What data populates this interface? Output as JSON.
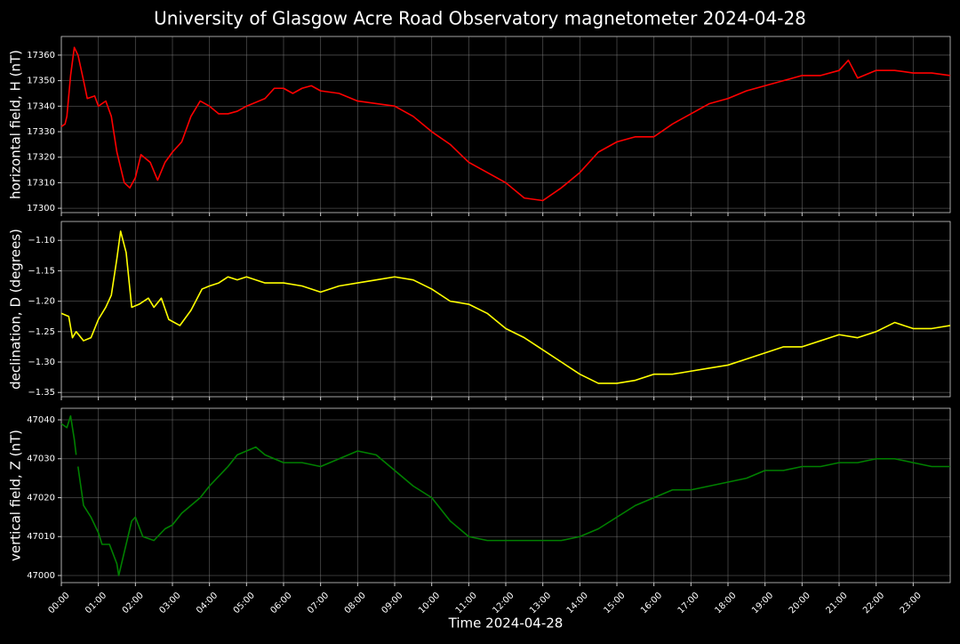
{
  "title": "University of Glasgow Acre Road Observatory magnetometer 2024-04-28",
  "chart_data": [
    {
      "type": "line",
      "ylabel": "horizontal field, H (nT)",
      "color": "#ff0000",
      "grid": true,
      "xlim": [
        0,
        24
      ],
      "ylim": [
        17298.3,
        17367.3
      ],
      "yticks": [
        17300,
        17310,
        17320,
        17330,
        17340,
        17350,
        17360
      ],
      "x": [
        0,
        0.1,
        0.15,
        0.25,
        0.35,
        0.45,
        0.6,
        0.7,
        0.9,
        1.0,
        1.2,
        1.35,
        1.5,
        1.7,
        1.85,
        2.0,
        2.15,
        2.4,
        2.6,
        2.8,
        3.0,
        3.25,
        3.5,
        3.75,
        4.0,
        4.25,
        4.5,
        4.75,
        5.0,
        5.5,
        5.75,
        6.0,
        6.25,
        6.5,
        6.75,
        7.0,
        7.5,
        8.0,
        8.5,
        9.0,
        9.5,
        10.0,
        10.5,
        11.0,
        11.5,
        12.0,
        12.5,
        13.0,
        13.5,
        14.0,
        14.5,
        15.0,
        15.5,
        16.0,
        16.5,
        17.0,
        17.5,
        18.0,
        18.5,
        19.0,
        19.5,
        20.0,
        20.5,
        21.0,
        21.25,
        21.5,
        22.0,
        22.5,
        23.0,
        23.5,
        24.0
      ],
      "values": [
        17332,
        17333,
        17336,
        17352,
        17363,
        17360,
        17350,
        17343,
        17344,
        17340,
        17342,
        17336,
        17322,
        17310,
        17308,
        17312,
        17321,
        17318,
        17311,
        17318,
        17322,
        17326,
        17336,
        17342,
        17340,
        17337,
        17337,
        17338,
        17340,
        17343,
        17347,
        17347,
        17345,
        17347,
        17348,
        17346,
        17345,
        17342,
        17341,
        17340,
        17336,
        17330,
        17325,
        17318,
        17314,
        17310,
        17304,
        17303,
        17308,
        17314,
        17322,
        17326,
        17328,
        17328,
        17333,
        17337,
        17341,
        17343,
        17346,
        17348,
        17350,
        17352,
        17352,
        17354,
        17358,
        17351,
        17354,
        17354,
        17353,
        17353,
        17352
      ]
    },
    {
      "type": "line",
      "ylabel": "declination, D (degrees)",
      "color": "#ffff00",
      "grid": true,
      "xlim": [
        0,
        24
      ],
      "ylim": [
        -1.357,
        -1.069
      ],
      "yticks": [
        {
          "value": -1.35,
          "label": "−1.35"
        },
        {
          "value": -1.3,
          "label": "−1.30"
        },
        {
          "value": -1.25,
          "label": "−1.25"
        },
        {
          "value": -1.2,
          "label": "−1.20"
        },
        {
          "value": -1.15,
          "label": "−1.15"
        },
        {
          "value": -1.1,
          "label": "−1.10"
        }
      ],
      "x": [
        0,
        0.2,
        0.3,
        0.4,
        0.6,
        0.8,
        1.0,
        1.2,
        1.35,
        1.5,
        1.6,
        1.75,
        1.9,
        2.1,
        2.35,
        2.5,
        2.7,
        2.9,
        3.2,
        3.5,
        3.8,
        4.0,
        4.25,
        4.5,
        4.75,
        5.0,
        5.5,
        6.0,
        6.5,
        7.0,
        7.5,
        8.0,
        8.5,
        9.0,
        9.5,
        10.0,
        10.5,
        11.0,
        11.5,
        12.0,
        12.5,
        13.0,
        13.5,
        14.0,
        14.5,
        15.0,
        15.5,
        16.0,
        16.5,
        17.0,
        17.5,
        18.0,
        18.5,
        19.0,
        19.5,
        20.0,
        20.5,
        21.0,
        21.5,
        22.0,
        22.5,
        23.0,
        23.5,
        24
      ],
      "values": [
        -1.22,
        -1.225,
        -1.26,
        -1.25,
        -1.265,
        -1.26,
        -1.23,
        -1.21,
        -1.19,
        -1.13,
        -1.085,
        -1.12,
        -1.21,
        -1.205,
        -1.195,
        -1.21,
        -1.195,
        -1.23,
        -1.24,
        -1.215,
        -1.18,
        -1.175,
        -1.17,
        -1.16,
        -1.165,
        -1.16,
        -1.17,
        -1.17,
        -1.175,
        -1.185,
        -1.175,
        -1.17,
        -1.165,
        -1.16,
        -1.165,
        -1.18,
        -1.2,
        -1.205,
        -1.22,
        -1.245,
        -1.26,
        -1.28,
        -1.3,
        -1.32,
        -1.335,
        -1.335,
        -1.33,
        -1.32,
        -1.32,
        -1.315,
        -1.31,
        -1.305,
        -1.295,
        -1.285,
        -1.275,
        -1.275,
        -1.265,
        -1.255,
        -1.26,
        -1.25,
        -1.235,
        -1.245,
        -1.245,
        -1.24
      ]
    },
    {
      "type": "line",
      "ylabel": "vertical field, Z (nT)",
      "xlabel": "Time 2024-04-28",
      "color": "#008000",
      "grid": true,
      "xlim": [
        0,
        24
      ],
      "ylim": [
        46998.17,
        47042.97
      ],
      "yticks": [
        47000,
        47010,
        47020,
        47030,
        47040
      ],
      "xticks": [
        {
          "value": 0,
          "label": "00:00"
        },
        {
          "value": 1,
          "label": "01:00"
        },
        {
          "value": 2,
          "label": "02:00"
        },
        {
          "value": 3,
          "label": "03:00"
        },
        {
          "value": 4,
          "label": "04:00"
        },
        {
          "value": 5,
          "label": "05:00"
        },
        {
          "value": 6,
          "label": "06:00"
        },
        {
          "value": 7,
          "label": "07:00"
        },
        {
          "value": 8,
          "label": "08:00"
        },
        {
          "value": 9,
          "label": "09:00"
        },
        {
          "value": 10,
          "label": "10:00"
        },
        {
          "value": 11,
          "label": "11:00"
        },
        {
          "value": 12,
          "label": "12:00"
        },
        {
          "value": 13,
          "label": "13:00"
        },
        {
          "value": 14,
          "label": "14:00"
        },
        {
          "value": 15,
          "label": "15:00"
        },
        {
          "value": 16,
          "label": "16:00"
        },
        {
          "value": 17,
          "label": "17:00"
        },
        {
          "value": 18,
          "label": "18:00"
        },
        {
          "value": 19,
          "label": "19:00"
        },
        {
          "value": 20,
          "label": "20:00"
        },
        {
          "value": 21,
          "label": "21:00"
        },
        {
          "value": 22,
          "label": "22:00"
        },
        {
          "value": 23,
          "label": "23:00"
        }
      ],
      "x": [
        0,
        0.15,
        0.25,
        0.35,
        0.4,
        0.42,
        0.45,
        0.6,
        0.8,
        1.0,
        1.1,
        1.3,
        1.5,
        1.55,
        1.7,
        1.9,
        2.0,
        2.2,
        2.5,
        2.8,
        3.0,
        3.25,
        3.5,
        3.75,
        4.0,
        4.5,
        4.75,
        5.0,
        5.25,
        5.5,
        6.0,
        6.5,
        7.0,
        7.5,
        8.0,
        8.5,
        9.0,
        9.5,
        10.0,
        10.5,
        11.0,
        11.5,
        12.0,
        12.5,
        13.0,
        13.5,
        14.0,
        14.5,
        15.0,
        15.5,
        16.0,
        16.5,
        17.0,
        17.5,
        18.0,
        18.5,
        19.0,
        19.5,
        20.0,
        20.5,
        21.0,
        21.5,
        22.0,
        22.5,
        23.0,
        23.5,
        24
      ],
      "values": [
        47039,
        47038,
        47041,
        47035,
        47031,
        null,
        47028,
        47018,
        47015,
        47011,
        47008,
        47008,
        47003,
        47000,
        47006,
        47014,
        47015,
        47010,
        47009,
        47012,
        47013,
        47016,
        47018,
        47020,
        47023,
        47028,
        47031,
        47032,
        47033,
        47031,
        47029,
        47029,
        47028,
        47030,
        47032,
        47031,
        47027,
        47023,
        47020,
        47014,
        47010,
        47009,
        47009,
        47009,
        47009,
        47009,
        47010,
        47012,
        47015,
        47018,
        47020,
        47022,
        47022,
        47023,
        47024,
        47025,
        47027,
        47027,
        47028,
        47028,
        47029,
        47029,
        47030,
        47030,
        47029,
        47028,
        47028
      ]
    }
  ]
}
